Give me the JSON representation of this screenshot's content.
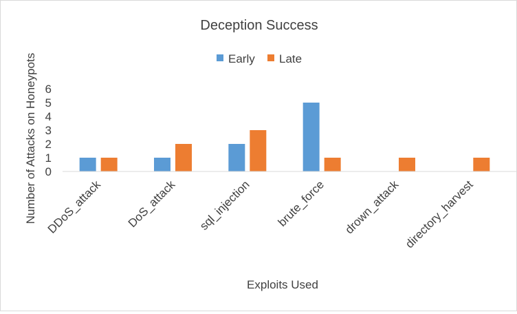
{
  "chart_data": {
    "type": "bar",
    "title": "Deception Success",
    "xlabel": "Exploits Used",
    "ylabel": "Number of Attacks on Honeypots",
    "categories": [
      "DDoS_attack",
      "DoS_attack",
      "sql_injection",
      "brute_force",
      "drown_attack",
      "directory_harvest"
    ],
    "series": [
      {
        "name": "Early",
        "color": "#5b9bd5",
        "values": [
          1,
          1,
          2,
          5,
          0,
          0
        ]
      },
      {
        "name": "Late",
        "color": "#ed7d31",
        "values": [
          1,
          2,
          3,
          1,
          1,
          1
        ]
      }
    ],
    "ylim": [
      0,
      6
    ],
    "yticks": [
      "0",
      "1",
      "2",
      "3",
      "4",
      "5",
      "6"
    ],
    "grid": false,
    "legend_position": "top"
  }
}
